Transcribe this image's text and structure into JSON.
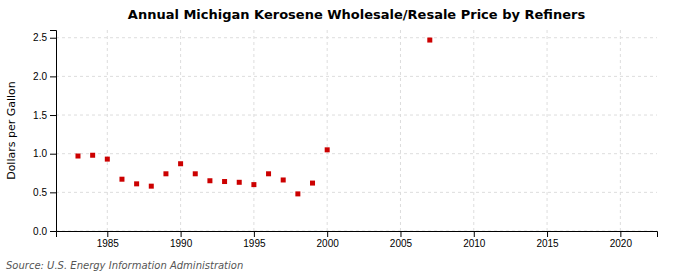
{
  "chart_data": {
    "type": "scatter",
    "title": "Annual Michigan Kerosene Wholesale/Resale Price by Refiners",
    "ylabel": "Dollars per Gallon",
    "annotations": [
      "Source: U.S. Energy Information Administration"
    ],
    "x": [
      1983,
      1984,
      1985,
      1986,
      1987,
      1988,
      1989,
      1990,
      1991,
      1992,
      1993,
      1994,
      1995,
      1996,
      1997,
      1998,
      1999,
      2000,
      2007
    ],
    "values": [
      0.97,
      0.98,
      0.93,
      0.67,
      0.61,
      0.58,
      0.74,
      0.87,
      0.74,
      0.65,
      0.64,
      0.63,
      0.6,
      0.74,
      0.66,
      0.48,
      0.62,
      1.05,
      2.47
    ],
    "color": "#cc0000",
    "marker": "square",
    "xlim": [
      1981.5,
      2022.5
    ],
    "ylim": [
      0.0,
      2.6
    ],
    "xticks": [
      1985,
      1990,
      1995,
      2000,
      2005,
      2010,
      2015,
      2020
    ],
    "yticks": [
      {
        "value": 0.0,
        "label": "0.0"
      },
      0.5,
      {
        "value": 1.0,
        "label": "1.0"
      },
      1.5,
      {
        "value": 2.0,
        "label": "2.0"
      },
      2.5
    ],
    "grid": true
  }
}
